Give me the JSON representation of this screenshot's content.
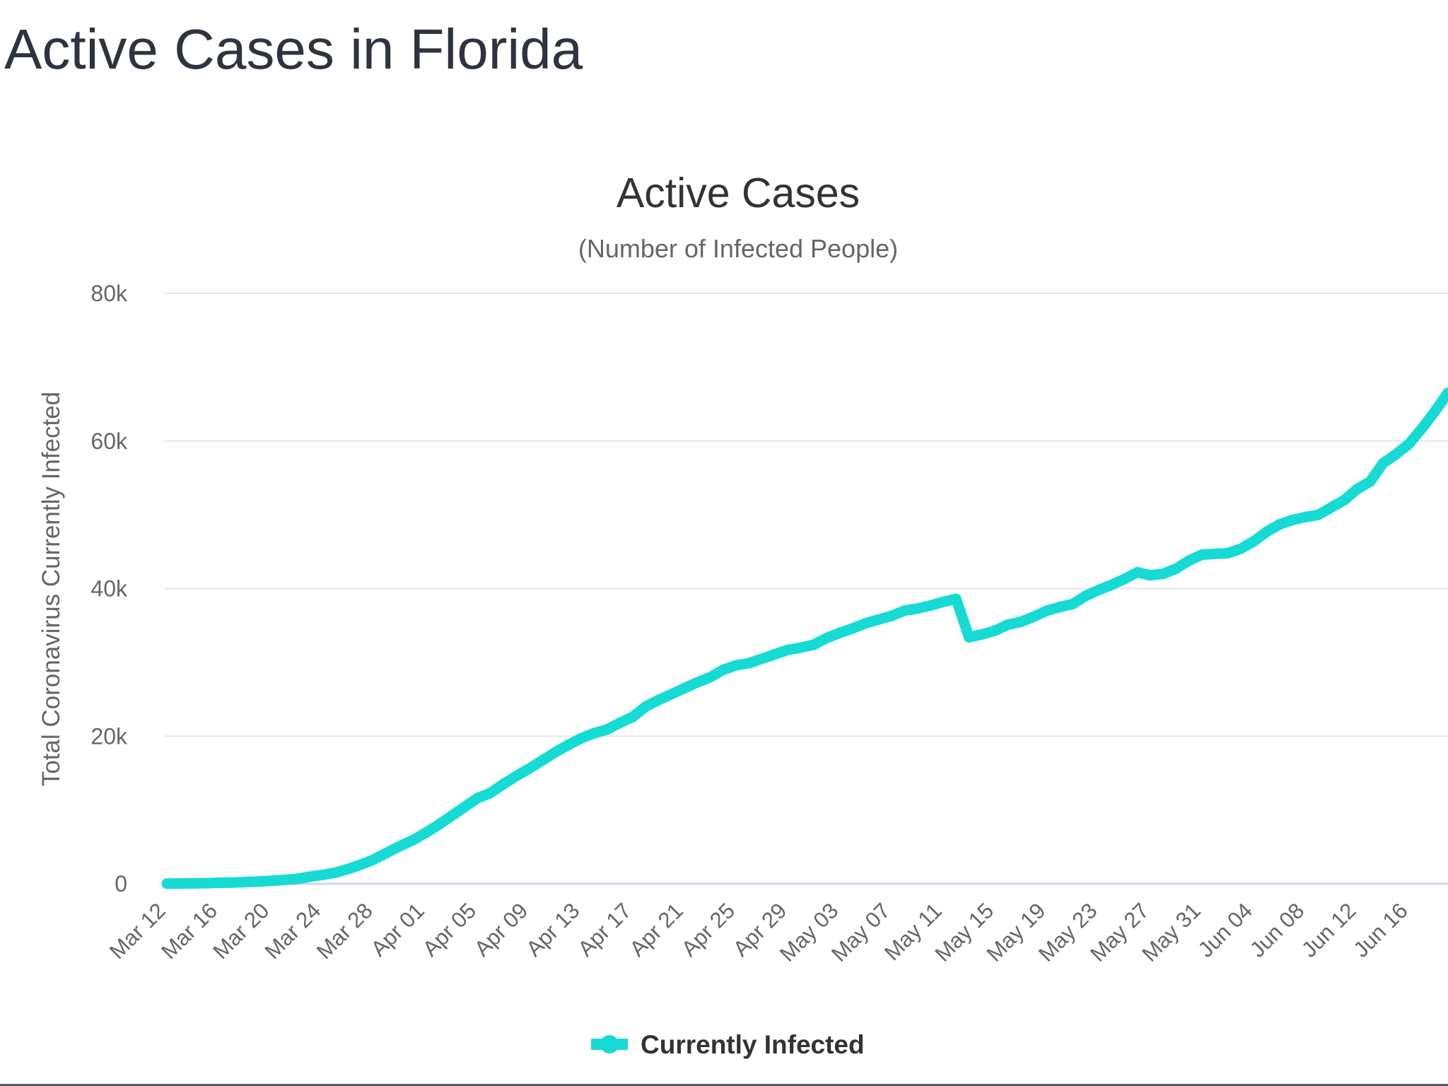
{
  "page": {
    "heading": "Active Cases in Florida"
  },
  "colors": {
    "series": "#16dbd4",
    "grid": "#e6e6e6",
    "baseline": "#ccd6eb",
    "heading": "#2e3340"
  },
  "chart_data": {
    "type": "line",
    "title": "Active Cases",
    "subtitle": "(Number of Infected People)",
    "ylabel": "Total Coronavirus Currently Infected",
    "xlabel": "",
    "ylim": [
      0,
      80000
    ],
    "y_ticks": [
      {
        "value": 0,
        "label": "0"
      },
      {
        "value": 20000,
        "label": "20k"
      },
      {
        "value": 40000,
        "label": "40k"
      },
      {
        "value": 60000,
        "label": "60k"
      },
      {
        "value": 80000,
        "label": "80k"
      }
    ],
    "grid": true,
    "legend_position": "bottom-center",
    "x_tick_labels": [
      "Mar 12",
      "Mar 16",
      "Mar 20",
      "Mar 24",
      "Mar 28",
      "Apr 01",
      "Apr 05",
      "Apr 09",
      "Apr 13",
      "Apr 17",
      "Apr 21",
      "Apr 25",
      "Apr 29",
      "May 03",
      "May 07",
      "May 11",
      "May 15",
      "May 19",
      "May 23",
      "May 27",
      "May 31",
      "Jun 04",
      "Jun 08",
      "Jun 12",
      "Jun 16"
    ],
    "x_tick_every": 4,
    "categories": [
      "Mar 12",
      "Mar 13",
      "Mar 14",
      "Mar 15",
      "Mar 16",
      "Mar 17",
      "Mar 18",
      "Mar 19",
      "Mar 20",
      "Mar 21",
      "Mar 22",
      "Mar 23",
      "Mar 24",
      "Mar 25",
      "Mar 26",
      "Mar 27",
      "Mar 28",
      "Mar 29",
      "Mar 30",
      "Mar 31",
      "Apr 01",
      "Apr 02",
      "Apr 03",
      "Apr 04",
      "Apr 05",
      "Apr 06",
      "Apr 07",
      "Apr 08",
      "Apr 09",
      "Apr 10",
      "Apr 11",
      "Apr 12",
      "Apr 13",
      "Apr 14",
      "Apr 15",
      "Apr 16",
      "Apr 17",
      "Apr 18",
      "Apr 19",
      "Apr 20",
      "Apr 21",
      "Apr 22",
      "Apr 23",
      "Apr 24",
      "Apr 25",
      "Apr 26",
      "Apr 27",
      "Apr 28",
      "Apr 29",
      "Apr 30",
      "May 01",
      "May 02",
      "May 03",
      "May 04",
      "May 05",
      "May 06",
      "May 07",
      "May 08",
      "May 09",
      "May 10",
      "May 11",
      "May 12",
      "May 13",
      "May 14",
      "May 15",
      "May 16",
      "May 17",
      "May 18",
      "May 19",
      "May 20",
      "May 21",
      "May 22",
      "May 23",
      "May 24",
      "May 25",
      "May 26",
      "May 27",
      "May 28",
      "May 29",
      "May 30",
      "May 31",
      "Jun 01",
      "Jun 02",
      "Jun 03",
      "Jun 04",
      "Jun 05",
      "Jun 06",
      "Jun 07",
      "Jun 08",
      "Jun 09",
      "Jun 10",
      "Jun 11",
      "Jun 12",
      "Jun 13",
      "Jun 14",
      "Jun 15",
      "Jun 16",
      "Jun 17",
      "Jun 18",
      "Jun 19"
    ],
    "series": [
      {
        "name": "Currently Infected",
        "values": [
          25,
          40,
          60,
          90,
          130,
          170,
          230,
          300,
          390,
          520,
          650,
          950,
          1200,
          1500,
          2000,
          2600,
          3300,
          4200,
          5100,
          5900,
          6900,
          8000,
          9200,
          10400,
          11600,
          12300,
          13500,
          14600,
          15600,
          16700,
          17800,
          18800,
          19700,
          20400,
          20900,
          21800,
          22600,
          24000,
          24900,
          25700,
          26500,
          27300,
          28000,
          29000,
          29600,
          29900,
          30500,
          31100,
          31700,
          32000,
          32400,
          33300,
          34000,
          34600,
          35300,
          35800,
          36300,
          37000,
          37300,
          37700,
          38200,
          38600,
          33400,
          33800,
          34300,
          35100,
          35500,
          36200,
          37000,
          37500,
          37900,
          39000,
          39800,
          40500,
          41300,
          42200,
          41800,
          42000,
          42700,
          43800,
          44600,
          44700,
          44800,
          45400,
          46400,
          47700,
          48700,
          49300,
          49700,
          50000,
          51000,
          52000,
          53500,
          54500,
          57000,
          58200,
          59600,
          61700,
          64000,
          66500
        ]
      }
    ]
  }
}
